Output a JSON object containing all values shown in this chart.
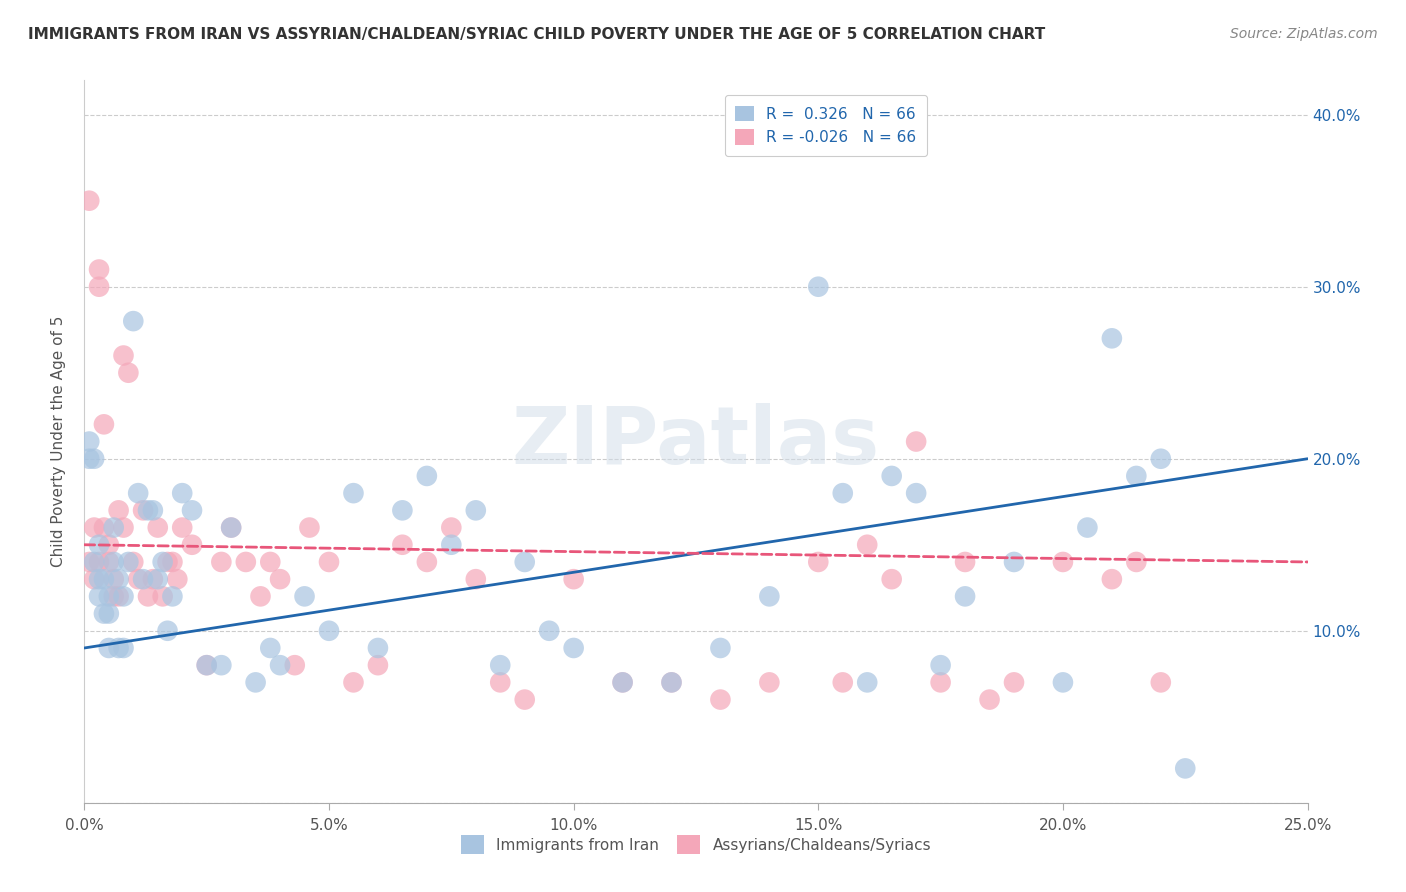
{
  "title": "IMMIGRANTS FROM IRAN VS ASSYRIAN/CHALDEAN/SYRIAC CHILD POVERTY UNDER THE AGE OF 5 CORRELATION CHART",
  "source": "Source: ZipAtlas.com",
  "ylabel": "Child Poverty Under the Age of 5",
  "xlim": [
    0.0,
    0.25
  ],
  "ylim": [
    0.0,
    0.42
  ],
  "xticks": [
    0.0,
    0.05,
    0.1,
    0.15,
    0.2,
    0.25
  ],
  "xticklabels": [
    "0.0%",
    "5.0%",
    "10.0%",
    "15.0%",
    "20.0%",
    "25.0%"
  ],
  "yticks": [
    0.0,
    0.1,
    0.2,
    0.3,
    0.4
  ],
  "yticklabels_right": [
    "",
    "10.0%",
    "20.0%",
    "30.0%",
    "40.0%"
  ],
  "blue_R": 0.326,
  "blue_N": 66,
  "pink_R": -0.026,
  "pink_N": 66,
  "blue_color": "#a8c4e0",
  "pink_color": "#f4a7b9",
  "blue_line_color": "#2166ac",
  "pink_line_color": "#e8567a",
  "blue_label": "Immigrants from Iran",
  "pink_label": "Assyrians/Chaldeans/Syriacs",
  "title_color": "#333333",
  "source_color": "#888888",
  "watermark": "ZIPatlas",
  "blue_line_start": 0.09,
  "blue_line_end": 0.2,
  "pink_line_start": 0.15,
  "pink_line_end": 0.14,
  "blue_x": [
    0.001,
    0.001,
    0.002,
    0.002,
    0.003,
    0.003,
    0.003,
    0.004,
    0.004,
    0.005,
    0.005,
    0.005,
    0.006,
    0.006,
    0.007,
    0.007,
    0.008,
    0.008,
    0.009,
    0.01,
    0.011,
    0.012,
    0.013,
    0.014,
    0.015,
    0.016,
    0.017,
    0.018,
    0.02,
    0.022,
    0.025,
    0.028,
    0.03,
    0.035,
    0.038,
    0.04,
    0.045,
    0.05,
    0.055,
    0.06,
    0.065,
    0.07,
    0.075,
    0.08,
    0.085,
    0.09,
    0.095,
    0.1,
    0.11,
    0.12,
    0.13,
    0.14,
    0.15,
    0.155,
    0.16,
    0.165,
    0.17,
    0.175,
    0.18,
    0.19,
    0.2,
    0.205,
    0.21,
    0.215,
    0.22,
    0.225
  ],
  "blue_y": [
    0.21,
    0.2,
    0.2,
    0.14,
    0.15,
    0.13,
    0.12,
    0.13,
    0.11,
    0.12,
    0.11,
    0.09,
    0.16,
    0.14,
    0.09,
    0.13,
    0.09,
    0.12,
    0.14,
    0.28,
    0.18,
    0.13,
    0.17,
    0.17,
    0.13,
    0.14,
    0.1,
    0.12,
    0.18,
    0.17,
    0.08,
    0.08,
    0.16,
    0.07,
    0.09,
    0.08,
    0.12,
    0.1,
    0.18,
    0.09,
    0.17,
    0.19,
    0.15,
    0.17,
    0.08,
    0.14,
    0.1,
    0.09,
    0.07,
    0.07,
    0.09,
    0.12,
    0.3,
    0.18,
    0.07,
    0.19,
    0.18,
    0.08,
    0.12,
    0.14,
    0.07,
    0.16,
    0.27,
    0.19,
    0.2,
    0.02
  ],
  "pink_x": [
    0.001,
    0.001,
    0.002,
    0.002,
    0.003,
    0.003,
    0.003,
    0.004,
    0.004,
    0.005,
    0.005,
    0.006,
    0.006,
    0.007,
    0.007,
    0.008,
    0.008,
    0.009,
    0.01,
    0.011,
    0.012,
    0.013,
    0.014,
    0.015,
    0.016,
    0.017,
    0.018,
    0.019,
    0.02,
    0.022,
    0.025,
    0.028,
    0.03,
    0.033,
    0.036,
    0.038,
    0.04,
    0.043,
    0.046,
    0.05,
    0.055,
    0.06,
    0.065,
    0.07,
    0.075,
    0.08,
    0.085,
    0.09,
    0.1,
    0.11,
    0.12,
    0.13,
    0.14,
    0.15,
    0.155,
    0.16,
    0.165,
    0.17,
    0.175,
    0.18,
    0.185,
    0.19,
    0.2,
    0.21,
    0.215,
    0.22
  ],
  "pink_y": [
    0.14,
    0.35,
    0.16,
    0.13,
    0.31,
    0.3,
    0.14,
    0.16,
    0.22,
    0.15,
    0.14,
    0.13,
    0.12,
    0.12,
    0.17,
    0.26,
    0.16,
    0.25,
    0.14,
    0.13,
    0.17,
    0.12,
    0.13,
    0.16,
    0.12,
    0.14,
    0.14,
    0.13,
    0.16,
    0.15,
    0.08,
    0.14,
    0.16,
    0.14,
    0.12,
    0.14,
    0.13,
    0.08,
    0.16,
    0.14,
    0.07,
    0.08,
    0.15,
    0.14,
    0.16,
    0.13,
    0.07,
    0.06,
    0.13,
    0.07,
    0.07,
    0.06,
    0.07,
    0.14,
    0.07,
    0.15,
    0.13,
    0.21,
    0.07,
    0.14,
    0.06,
    0.07,
    0.14,
    0.13,
    0.14,
    0.07
  ]
}
